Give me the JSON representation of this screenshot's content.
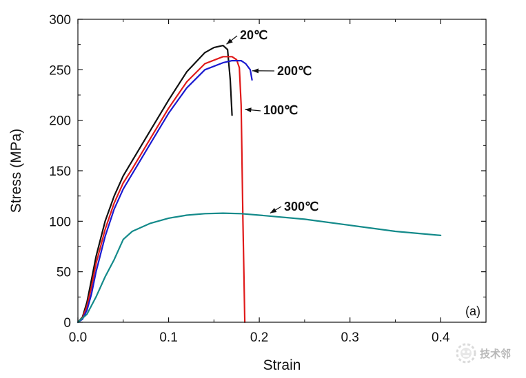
{
  "chart_data": {
    "type": "line",
    "xlabel": "Strain",
    "ylabel": "Stress (MPa)",
    "xlim": [
      0.0,
      0.45
    ],
    "ylim": [
      0,
      300
    ],
    "x_ticks": [
      "0.0",
      "0.1",
      "0.2",
      "0.3",
      "0.4"
    ],
    "x_tick_values": [
      0.0,
      0.1,
      0.2,
      0.3,
      0.4
    ],
    "y_ticks": [
      "0",
      "50",
      "100",
      "150",
      "200",
      "250",
      "300"
    ],
    "y_tick_values": [
      0,
      50,
      100,
      150,
      200,
      250,
      300
    ],
    "grid": false,
    "panel_label": "(a)",
    "series": [
      {
        "name": "20℃",
        "color": "#111111",
        "x": [
          0.0,
          0.005,
          0.01,
          0.015,
          0.02,
          0.03,
          0.04,
          0.05,
          0.06,
          0.08,
          0.1,
          0.12,
          0.14,
          0.15,
          0.16,
          0.165,
          0.168,
          0.17
        ],
        "y": [
          0,
          5,
          20,
          42,
          65,
          100,
          125,
          145,
          160,
          190,
          220,
          248,
          267,
          272,
          274,
          270,
          240,
          205
        ]
      },
      {
        "name": "100℃",
        "color": "#e01a1a",
        "x": [
          0.0,
          0.005,
          0.01,
          0.015,
          0.02,
          0.03,
          0.04,
          0.05,
          0.06,
          0.08,
          0.1,
          0.12,
          0.14,
          0.16,
          0.17,
          0.175,
          0.178,
          0.18,
          0.182,
          0.184
        ],
        "y": [
          0,
          4,
          16,
          35,
          58,
          92,
          118,
          138,
          152,
          182,
          212,
          238,
          256,
          263,
          263,
          260,
          252,
          215,
          100,
          0
        ]
      },
      {
        "name": "200℃",
        "color": "#1a1ad0",
        "x": [
          0.0,
          0.005,
          0.01,
          0.015,
          0.02,
          0.03,
          0.04,
          0.05,
          0.06,
          0.08,
          0.1,
          0.12,
          0.14,
          0.16,
          0.17,
          0.18,
          0.185,
          0.19,
          0.192
        ],
        "y": [
          0,
          3,
          12,
          28,
          50,
          85,
          112,
          132,
          147,
          177,
          207,
          232,
          250,
          257,
          259,
          259,
          256,
          250,
          240
        ]
      },
      {
        "name": "300℃",
        "color": "#138a8a",
        "x": [
          0.0,
          0.01,
          0.02,
          0.03,
          0.04,
          0.05,
          0.06,
          0.08,
          0.1,
          0.12,
          0.14,
          0.16,
          0.18,
          0.2,
          0.25,
          0.3,
          0.35,
          0.4
        ],
        "y": [
          0,
          8,
          25,
          45,
          62,
          82,
          90,
          98,
          103,
          106,
          107.5,
          108,
          107.5,
          106,
          102,
          96,
          90,
          86
        ]
      }
    ],
    "annotations": [
      {
        "label": "20℃",
        "series": "20℃",
        "point": [
          0.162,
          274
        ]
      },
      {
        "label": "200℃",
        "series": "200℃",
        "point": [
          0.19,
          249
        ]
      },
      {
        "label": "100℃",
        "series": "100℃",
        "point": [
          0.182,
          211
        ]
      },
      {
        "label": "300℃",
        "series": "300℃",
        "point": [
          0.21,
          107
        ]
      }
    ]
  },
  "watermark": {
    "text": "技术邻",
    "icon": "robot-mascot-icon"
  }
}
